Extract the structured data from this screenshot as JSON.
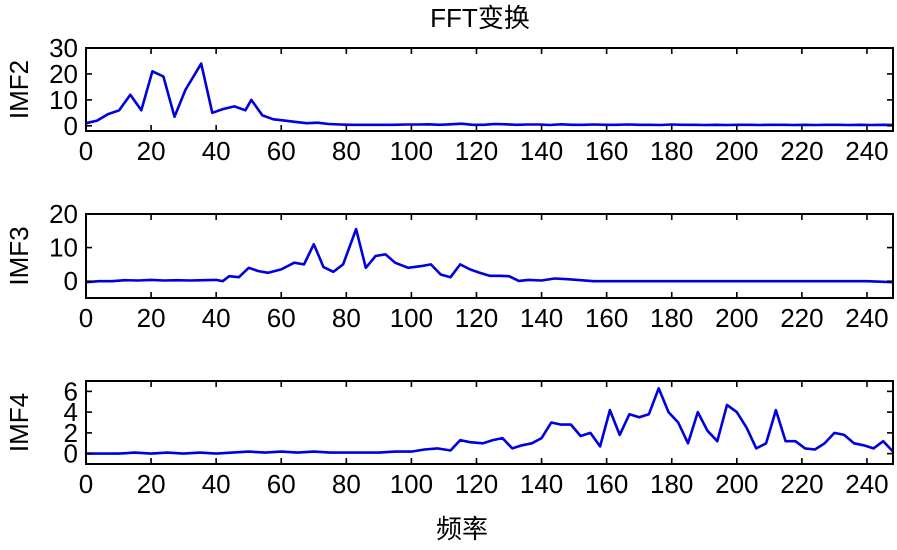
{
  "figure": {
    "title": "FFT变换",
    "xlabel": "频率"
  },
  "style": {
    "line_color": "#0000dd"
  },
  "chart_data": [
    {
      "type": "line",
      "ylabel": "IMF2",
      "xlim": [
        0,
        248
      ],
      "ylim": [
        -2,
        30
      ],
      "xticks": [
        0,
        20,
        40,
        60,
        80,
        100,
        120,
        140,
        160,
        180,
        200,
        220,
        240
      ],
      "yticks": [
        0,
        10,
        20,
        30
      ],
      "x": [
        0,
        3.4,
        6.8,
        10.2,
        13.6,
        17,
        20.4,
        23.8,
        27.2,
        30.6,
        34,
        35.4,
        38.8,
        42.2,
        45.6,
        49,
        50.8,
        54.2,
        57.6,
        61,
        64.4,
        67.8,
        71.2,
        74.6,
        78,
        81.4,
        84.8,
        88.2,
        91.6,
        95,
        98.4,
        101.8,
        105.2,
        108.6,
        112,
        115.4,
        118.8,
        122.2,
        125.6,
        129,
        132.4,
        135.8,
        139.2,
        142.6,
        146,
        149.4,
        152.8,
        156.2,
        159.6,
        163,
        166.4,
        169.8,
        173.2,
        176.6,
        180,
        183.4,
        186.8,
        190.2,
        193.6,
        197,
        200.4,
        203.8,
        207.2,
        210.6,
        214,
        217.4,
        220.8,
        224.2,
        227.6,
        231,
        234.4,
        237.8,
        241.2,
        244.6,
        248
      ],
      "values": [
        1,
        2,
        4.5,
        6,
        12,
        6,
        21,
        19,
        3.5,
        14,
        21,
        24,
        5,
        6.5,
        7.5,
        6,
        10,
        4,
        2.5,
        2,
        1.5,
        1,
        1.2,
        0.7,
        0.5,
        0.4,
        0.4,
        0.4,
        0.4,
        0.4,
        0.5,
        0.5,
        0.6,
        0.4,
        0.6,
        0.8,
        0.4,
        0.4,
        0.7,
        0.6,
        0.4,
        0.5,
        0.5,
        0.3,
        0.6,
        0.4,
        0.4,
        0.5,
        0.4,
        0.4,
        0.5,
        0.4,
        0.4,
        0.3,
        0.5,
        0.4,
        0.4,
        0.3,
        0.4,
        0.3,
        0.4,
        0.4,
        0.3,
        0.4,
        0.4,
        0.3,
        0.4,
        0.3,
        0.4,
        0.4,
        0.3,
        0.4,
        0.3,
        0.4,
        0.3
      ]
    },
    {
      "type": "line",
      "ylabel": "IMF3",
      "xlim": [
        0,
        248
      ],
      "ylim": [
        -5,
        20
      ],
      "xticks": [
        0,
        20,
        40,
        60,
        80,
        100,
        120,
        140,
        160,
        180,
        200,
        220,
        240
      ],
      "yticks": [
        0,
        10,
        20
      ],
      "x": [
        0,
        4,
        8,
        12,
        16,
        20,
        24,
        28,
        32,
        36,
        40,
        42,
        44,
        47,
        50,
        53,
        56,
        60,
        64,
        67,
        70,
        73,
        76,
        79,
        83,
        86,
        89,
        92,
        95,
        99,
        103,
        106,
        109,
        112,
        115,
        118,
        121,
        124,
        127,
        130,
        133,
        136,
        140,
        144,
        148,
        152,
        156,
        160,
        165,
        170,
        180,
        190,
        200,
        210,
        220,
        230,
        240,
        248
      ],
      "values": [
        -0.3,
        0,
        0,
        0.3,
        0.2,
        0.4,
        0.2,
        0.3,
        0.2,
        0.3,
        0.4,
        0,
        1.5,
        1.2,
        4,
        3,
        2.5,
        3.5,
        5.5,
        5,
        11,
        4.2,
        2.8,
        5,
        15.5,
        4,
        7.5,
        8,
        5.5,
        4,
        4.5,
        5,
        2,
        1.2,
        5,
        3.5,
        2.5,
        1.6,
        1.6,
        1.5,
        0.1,
        0.4,
        0.2,
        0.8,
        0.6,
        0.3,
        0,
        0,
        0,
        0,
        0,
        0,
        0,
        0,
        0,
        0,
        0,
        -0.3
      ]
    },
    {
      "type": "line",
      "ylabel": "IMF4",
      "xlim": [
        0,
        248
      ],
      "ylim": [
        -1,
        7
      ],
      "xticks": [
        0,
        20,
        40,
        60,
        80,
        100,
        120,
        140,
        160,
        180,
        200,
        220,
        240
      ],
      "yticks": [
        0,
        2,
        4,
        6
      ],
      "x": [
        0,
        5,
        10,
        15,
        20,
        25,
        30,
        35,
        40,
        45,
        50,
        55,
        60,
        65,
        70,
        75,
        80,
        85,
        90,
        95,
        100,
        104,
        108,
        112,
        115,
        118,
        122,
        125,
        128,
        131,
        134,
        137,
        140,
        143,
        146,
        149,
        152,
        155,
        158,
        161,
        164,
        167,
        170,
        173,
        176,
        179,
        182,
        185,
        188,
        191,
        194,
        197,
        200,
        203,
        206,
        209,
        212,
        215,
        218,
        221,
        224,
        227,
        230,
        233,
        236,
        239,
        242,
        245,
        248
      ],
      "values": [
        0,
        0,
        0,
        0.1,
        0,
        0.1,
        0,
        0.1,
        0,
        0.1,
        0.2,
        0.1,
        0.2,
        0.1,
        0.2,
        0.1,
        0.1,
        0.1,
        0.1,
        0.2,
        0.2,
        0.4,
        0.5,
        0.3,
        1.3,
        1.1,
        1,
        1.3,
        1.5,
        0.5,
        0.8,
        1,
        1.5,
        3,
        2.8,
        2.8,
        1.7,
        2,
        0.7,
        4.2,
        1.8,
        3.8,
        3.5,
        3.8,
        6.3,
        4,
        3,
        1,
        4,
        2.2,
        1.2,
        4.7,
        4,
        2.5,
        0.5,
        1,
        4.2,
        1.2,
        1.2,
        0.5,
        0.4,
        1,
        2,
        1.8,
        1,
        0.8,
        0.5,
        1.2,
        0.2
      ]
    }
  ]
}
